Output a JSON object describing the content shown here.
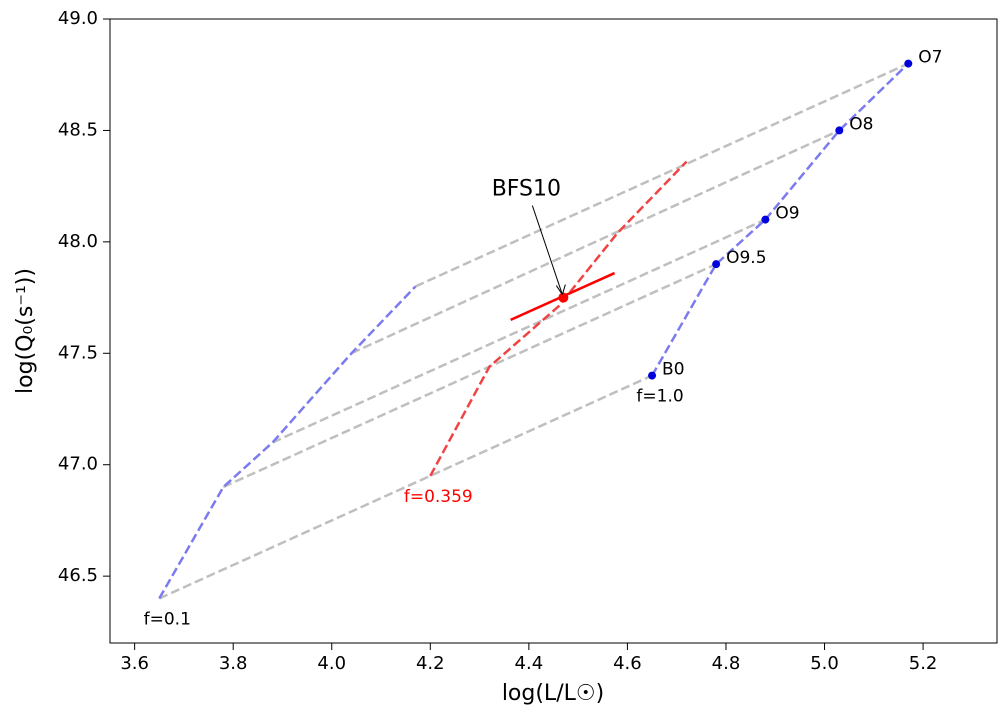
{
  "chart_data": {
    "type": "track",
    "xlabel": "log(L/L☉)",
    "ylabel": "log(Q₀(s⁻¹))",
    "xlim": [
      3.55,
      5.35
    ],
    "ylim": [
      46.2,
      49.0
    ],
    "xticks": [
      3.6,
      3.8,
      {
        "value": 4.0,
        "label": "4.0"
      },
      4.2,
      4.4,
      4.6,
      4.8,
      {
        "value": 5.0,
        "label": "5.0"
      },
      5.2
    ],
    "yticks": [
      46.5,
      {
        "value": 47.0,
        "label": "47.0"
      },
      47.5,
      {
        "value": 48.0,
        "label": "48.0"
      },
      48.5,
      {
        "value": 49.0,
        "label": "49.0"
      }
    ],
    "connector_color": "#bfbfbf",
    "tracks": [
      {
        "label": "f=0.1",
        "color": "#7b7bef",
        "label_color": "#000000",
        "x": [
          3.65,
          3.78,
          3.88,
          4.04,
          4.17
        ],
        "y": [
          46.4,
          46.9,
          47.1,
          47.5,
          47.8
        ]
      },
      {
        "label": "f=1.0",
        "color": "#7b7bef",
        "label_color": "#000000",
        "point_color": "#0000dd",
        "x": [
          4.65,
          4.78,
          4.88,
          5.03,
          5.17
        ],
        "y": [
          47.4,
          47.9,
          48.1,
          48.5,
          48.8
        ],
        "point_labels": [
          "B0",
          "O9.5",
          "O9",
          "O8",
          "O7"
        ]
      },
      {
        "label": "f=0.359",
        "color": "#f04444",
        "label_color": "#ff0000",
        "x": [
          4.2,
          4.32,
          4.46,
          4.58,
          4.72
        ],
        "y": [
          46.95,
          47.44,
          47.71,
          48.04,
          48.36
        ]
      }
    ],
    "object": {
      "label": "BFS10",
      "color": "#ff0000",
      "x": 4.47,
      "y": 47.75,
      "segment_x": [
        4.363,
        4.574
      ],
      "segment_y": [
        47.65,
        47.86
      ]
    }
  }
}
